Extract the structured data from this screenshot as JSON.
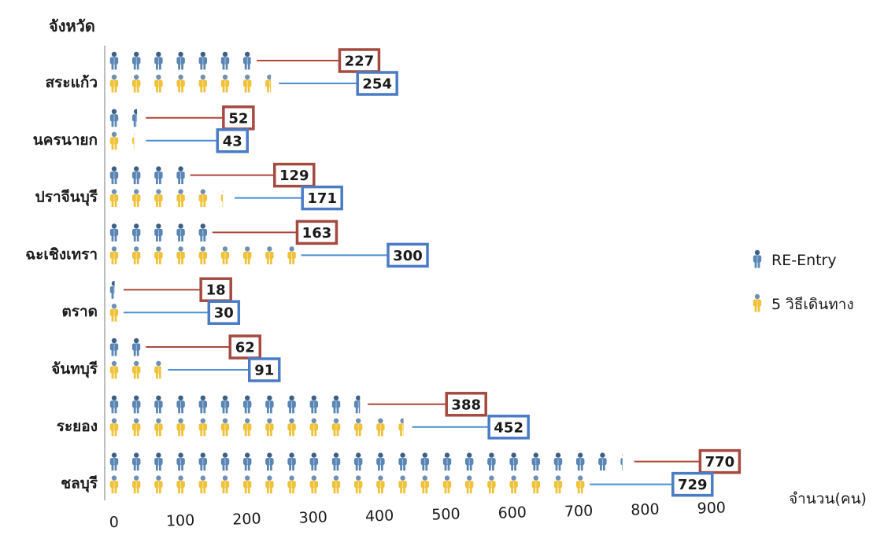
{
  "chart_data": {
    "type": "bar",
    "subtype": "pictograph",
    "y_title": "จังหวัด",
    "x_title": "จำนวน(คน)",
    "x_ticks": [
      0,
      100,
      200,
      300,
      400,
      500,
      600,
      700,
      800,
      900
    ],
    "xlim": [
      0,
      900
    ],
    "grid": false,
    "legend_position": "right",
    "categories": [
      "สระแก้ว",
      "นครนายก",
      "ปราจีนบุรี",
      "ฉะเชิงเทรา",
      "ตราด",
      "จันทบุรี",
      "ระยอง",
      "ชลบุรี"
    ],
    "series": [
      {
        "name": "RE-Entry",
        "values": [
          227,
          52,
          129,
          163,
          18,
          62,
          388,
          770
        ]
      },
      {
        "name": "5 วิธีเดินทาง",
        "values": [
          254,
          43,
          171,
          300,
          30,
          91,
          452,
          729
        ]
      }
    ],
    "colors": {
      "re_entry_body": "#5a86b5",
      "re_entry_head": "#3d5f86",
      "five_way_body": "#f0c23a",
      "five_way_head": "#6f90b4",
      "re_entry_label_border": "#a44a3f",
      "five_way_label_border": "#4a7cc5",
      "re_entry_leader": "#b0453a",
      "five_way_leader": "#4a8ed0",
      "axis": "#bcbcbc",
      "text": "#1a1a1a"
    }
  }
}
